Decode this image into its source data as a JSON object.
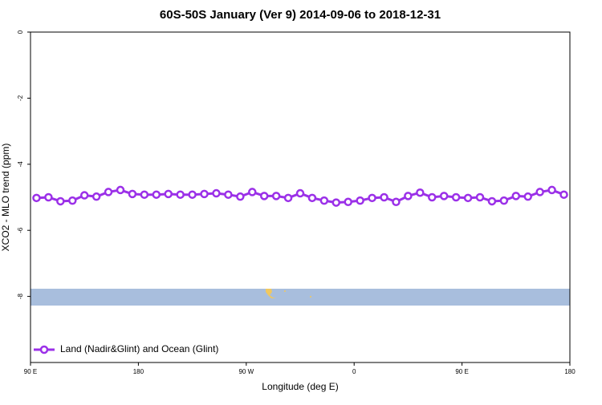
{
  "chart_data": {
    "type": "line",
    "title": "60S-50S January (Ver 9)   2014-09-06 to 2018-12-31",
    "x_label": "Longitude (deg E)",
    "y_label": "XCO2 - MLO trend (ppm)",
    "x": [
      95,
      105,
      115,
      125,
      135,
      145,
      155,
      165,
      175,
      185,
      195,
      205,
      215,
      225,
      235,
      245,
      255,
      265,
      275,
      285,
      295,
      305,
      315,
      325,
      335,
      345,
      355,
      365,
      375,
      385,
      395,
      405,
      415,
      425,
      435,
      445,
      455,
      465,
      475,
      485,
      495,
      505,
      515,
      525,
      535
    ],
    "series": [
      {
        "name": "Land (Nadir&Glint) and Ocean (Glint)",
        "color": "#9b30e8",
        "values": [
          -5.02,
          -5.0,
          -5.12,
          -5.1,
          -4.94,
          -4.98,
          -4.84,
          -4.78,
          -4.9,
          -4.92,
          -4.92,
          -4.9,
          -4.92,
          -4.92,
          -4.9,
          -4.88,
          -4.92,
          -4.98,
          -4.84,
          -4.96,
          -4.96,
          -5.02,
          -4.88,
          -5.02,
          -5.1,
          -5.16,
          -5.14,
          -5.1,
          -5.02,
          -5.0,
          -5.14,
          -4.96,
          -4.86,
          -5.0,
          -4.96,
          -5.0,
          -5.02,
          -5.0,
          -5.12,
          -5.1,
          -4.96,
          -4.98,
          -4.84,
          -4.78,
          -4.92
        ]
      }
    ],
    "xlim": [
      90,
      540
    ],
    "xticks": [
      {
        "value": 90,
        "label": "90 E"
      },
      180,
      {
        "value": 270,
        "label": "90 W"
      },
      {
        "value": 360,
        "label": "0"
      },
      {
        "value": 450,
        "label": "90 E"
      },
      180
    ],
    "ylim": [
      -10,
      0
    ],
    "yticks": [
      0,
      -2,
      -4,
      -6,
      -8
    ],
    "legend": "bottom-left"
  }
}
